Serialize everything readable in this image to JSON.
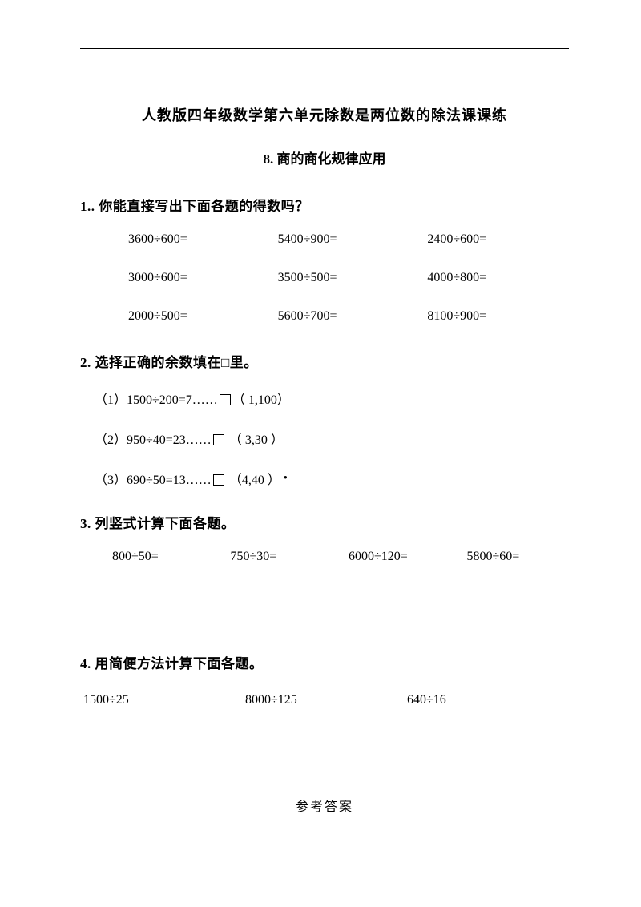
{
  "title": "人教版四年级数学第六单元除数是两位数的除法课课练",
  "subtitle": "8.  商的商化规律应用",
  "q1": {
    "heading": "1.. 你能直接写出下面各题的得数吗？",
    "rows": [
      [
        "3600÷600=",
        "5400÷900=",
        "2400÷600="
      ],
      [
        "3000÷600=",
        "3500÷500=",
        "4000÷800="
      ],
      [
        "2000÷500=",
        "5600÷700=",
        "8100÷900="
      ]
    ]
  },
  "q2": {
    "heading": "2. 选择正确的余数填在□里。",
    "items": [
      {
        "pre": "（1）1500÷200=7……",
        "opts": "（ 1,100）"
      },
      {
        "pre": "（2）950÷40=23……",
        "opts": " （ 3,30 ）"
      },
      {
        "pre": "（3）690÷50=13……",
        "opts": " （4,40  ）",
        "dot": true
      }
    ]
  },
  "q3": {
    "heading": "3. 列竖式计算下面各题。",
    "items": [
      "800÷50=",
      "750÷30=",
      "6000÷120=",
      "5800÷60="
    ]
  },
  "q4": {
    "heading": "4. 用简便方法计算下面各题。",
    "items": [
      "1500÷25",
      "8000÷125",
      "640÷16"
    ]
  },
  "answers_title": "参考答案"
}
